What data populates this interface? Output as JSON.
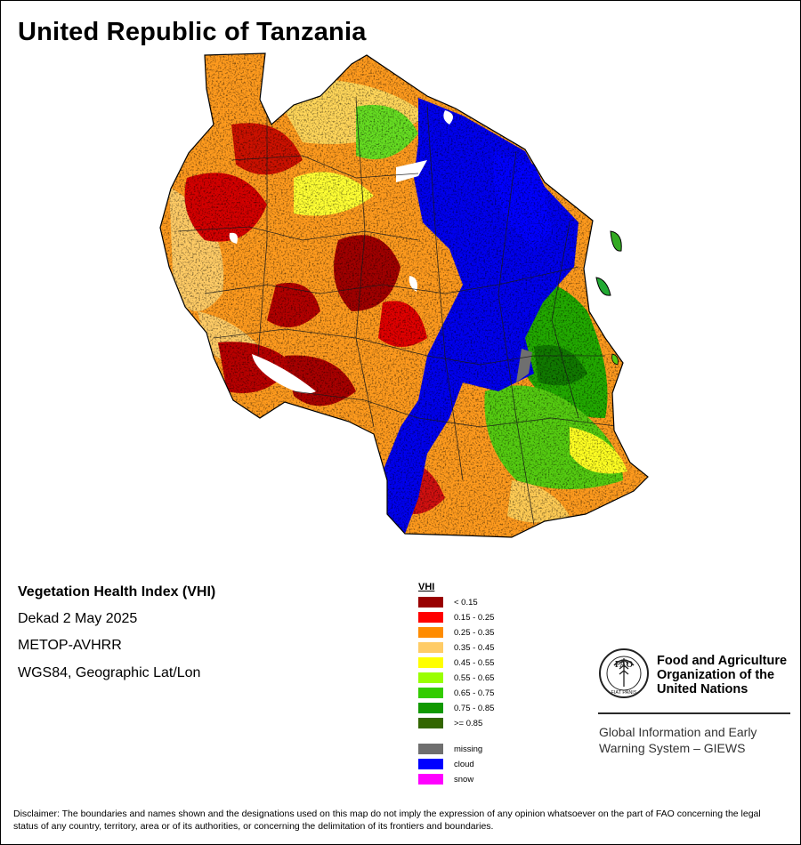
{
  "title": "United Republic of Tanzania",
  "info": {
    "index_name": "Vegetation Health Index (VHI)",
    "period": "Dekad 2 May 2025",
    "sensor": "METOP-AVHRR",
    "projection": "WGS84, Geographic Lat/Lon"
  },
  "legend": {
    "title": "VHI",
    "classes": [
      {
        "label": "< 0.15",
        "color": "#990000"
      },
      {
        "label": "0.15 - 0.25",
        "color": "#ff0000"
      },
      {
        "label": "0.25 - 0.35",
        "color": "#ff8c00"
      },
      {
        "label": "0.35 - 0.45",
        "color": "#ffcc66"
      },
      {
        "label": "0.45 - 0.55",
        "color": "#ffff00"
      },
      {
        "label": "0.55 - 0.65",
        "color": "#99ff00"
      },
      {
        "label": "0.65 - 0.75",
        "color": "#33cc00"
      },
      {
        "label": "0.75 - 0.85",
        "color": "#119900"
      },
      {
        "label": ">= 0.85",
        "color": "#336600"
      }
    ],
    "special": [
      {
        "label": "missing",
        "color": "#6f6f6f"
      },
      {
        "label": "cloud",
        "color": "#0000ff"
      },
      {
        "label": "snow",
        "color": "#ff00ff"
      }
    ]
  },
  "fao": {
    "emblem_text": "FAO",
    "motto": "FIAT PANIS",
    "name_lines": [
      "Food and Agriculture",
      "Organization of the",
      "United Nations"
    ],
    "program_lines": [
      "Global Information and Early",
      "Warning System – GIEWS"
    ]
  },
  "disclaimer": "Disclaimer: The boundaries and names shown and the designations used on this map do not imply the expression of any opinion whatsoever on the part of FAO concerning the legal status of any country, territory, area or of its authorities, or concerning the delimitation of its frontiers and boundaries."
}
